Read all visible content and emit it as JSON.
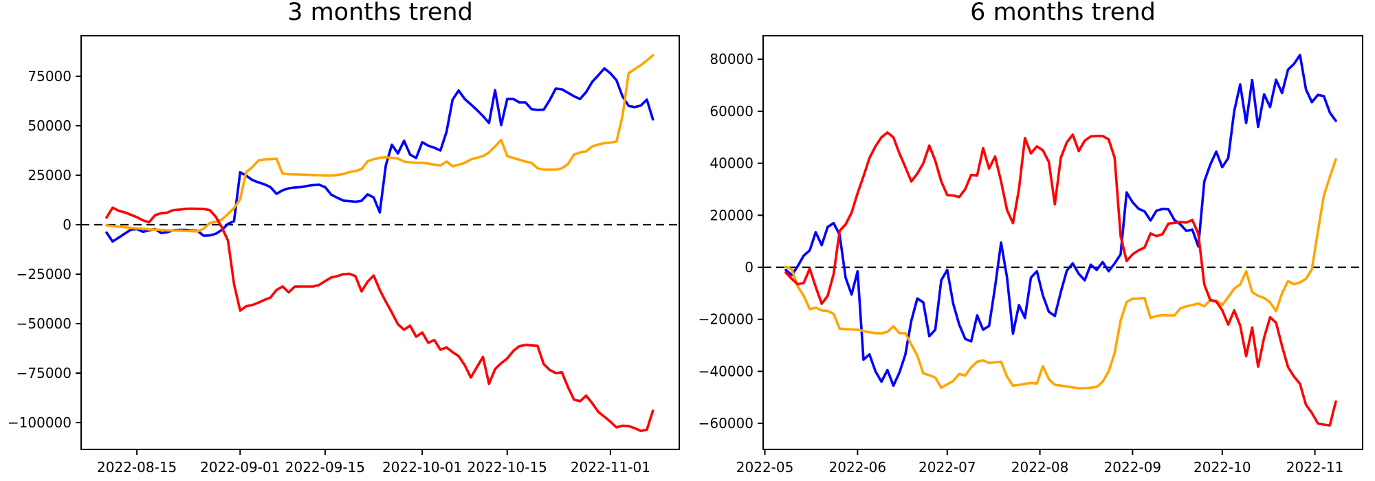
{
  "figure": {
    "background": "#ffffff",
    "text_color": "#000000"
  },
  "chart_data": [
    {
      "type": "line",
      "title": "3 months trend",
      "legend": "none",
      "grid": false,
      "zero_line": {
        "style": "dashed",
        "color": "#000000",
        "value": 0
      },
      "x_start": "2022-08-10",
      "x_step_days": 1,
      "x_tick_labels": [
        "2022-08-15",
        "2022-09-01",
        "2022-09-15",
        "2022-10-01",
        "2022-10-15",
        "2022-11-01"
      ],
      "y_ticks": [
        {
          "label": "75000",
          "value": 75000
        },
        {
          "label": "50000",
          "value": 50000
        },
        {
          "label": "25000",
          "value": 25000
        },
        {
          "label": "0",
          "value": 0
        },
        {
          "label": "−25000",
          "value": -25000
        },
        {
          "label": "−50000",
          "value": -50000
        },
        {
          "label": "−75000",
          "value": -75000
        },
        {
          "label": "−100000",
          "value": -100000
        }
      ],
      "ylim": [
        -113500,
        95500
      ],
      "series": [
        {
          "name": "blue",
          "color": "#0000ff",
          "values": [
            -4000,
            -8500,
            -6500,
            -4500,
            -2500,
            -2200,
            -3600,
            -2800,
            -2200,
            -4200,
            -3800,
            -2800,
            -2600,
            -2600,
            -3000,
            -3200,
            -5600,
            -5400,
            -4600,
            -2600,
            400,
            1800,
            26500,
            24800,
            22600,
            21400,
            20400,
            19000,
            15600,
            17400,
            18400,
            18800,
            19000,
            19600,
            20000,
            20200,
            19000,
            15200,
            13600,
            12200,
            11900,
            11600,
            12100,
            15300,
            13800,
            6200,
            30000,
            40400,
            36000,
            42400,
            35400,
            33700,
            41700,
            39900,
            38900,
            37500,
            46900,
            63200,
            67800,
            63500,
            60800,
            58000,
            54900,
            51400,
            68000,
            50300,
            63500,
            63500,
            61800,
            61800,
            58400,
            58000,
            58100,
            63000,
            68800,
            68400,
            66700,
            64900,
            63500,
            67000,
            72200,
            75500,
            79000,
            76500,
            73000,
            64800,
            60000,
            59400,
            60200,
            63200,
            53200
          ]
        },
        {
          "name": "orange",
          "color": "#ffa500",
          "values": [
            -300,
            -700,
            -1000,
            -1300,
            -1600,
            -1900,
            -2100,
            -2400,
            -2500,
            -2600,
            -2800,
            -3000,
            -3000,
            -3200,
            -3300,
            -3400,
            -2000,
            800,
            1500,
            2600,
            5400,
            8400,
            12800,
            26600,
            29000,
            32400,
            33000,
            33100,
            33300,
            25800,
            25500,
            25400,
            25300,
            25200,
            25100,
            25000,
            24900,
            24900,
            25100,
            25600,
            26600,
            27100,
            28100,
            32100,
            33100,
            33800,
            34100,
            33800,
            33400,
            31900,
            31500,
            31250,
            31250,
            30900,
            30300,
            29900,
            31900,
            29500,
            30300,
            31250,
            33000,
            33800,
            34700,
            36500,
            39500,
            42800,
            34700,
            33700,
            32800,
            31900,
            31250,
            28500,
            27800,
            27800,
            27800,
            28500,
            30600,
            35400,
            36500,
            37100,
            39500,
            40500,
            41200,
            41500,
            42000,
            55000,
            76600,
            78600,
            80600,
            83000,
            85600
          ]
        },
        {
          "name": "red",
          "color": "#ff0000",
          "values": [
            3600,
            8600,
            7000,
            6200,
            5000,
            3800,
            2200,
            1200,
            4800,
            5800,
            6100,
            7400,
            7600,
            8000,
            8100,
            8000,
            7900,
            7400,
            4000,
            -1500,
            -8000,
            -30000,
            -43400,
            -41200,
            -40600,
            -39400,
            -38000,
            -36800,
            -33000,
            -31200,
            -34200,
            -31300,
            -31250,
            -31250,
            -31250,
            -30500,
            -28500,
            -26700,
            -26000,
            -25000,
            -24800,
            -26000,
            -33700,
            -28800,
            -25700,
            -33000,
            -38900,
            -44400,
            -50300,
            -53100,
            -51000,
            -56600,
            -54500,
            -59700,
            -58300,
            -63200,
            -62000,
            -64400,
            -66400,
            -71000,
            -77200,
            -72000,
            -66800,
            -80400,
            -73000,
            -70000,
            -67600,
            -63800,
            -61400,
            -60800,
            -61000,
            -61200,
            -70400,
            -73400,
            -75000,
            -74600,
            -82000,
            -88400,
            -89200,
            -86400,
            -90200,
            -94600,
            -97000,
            -99600,
            -102400,
            -101600,
            -101800,
            -102800,
            -104200,
            -103600,
            -94000
          ]
        }
      ]
    },
    {
      "type": "line",
      "title": "6 months trend",
      "legend": "none",
      "grid": false,
      "zero_line": {
        "style": "dashed",
        "color": "#000000",
        "value": 0
      },
      "x_start": "2022-05-08",
      "x_step_days": 2,
      "x_tick_labels": [
        "2022-05",
        "2022-06",
        "2022-07",
        "2022-08",
        "2022-09",
        "2022-10",
        "2022-11"
      ],
      "y_ticks": [
        {
          "label": "80000",
          "value": 80000
        },
        {
          "label": "60000",
          "value": 60000
        },
        {
          "label": "40000",
          "value": 40000
        },
        {
          "label": "20000",
          "value": 20000
        },
        {
          "label": "0",
          "value": 0
        },
        {
          "label": "−20000",
          "value": -20000
        },
        {
          "label": "−40000",
          "value": -40000
        },
        {
          "label": "−60000",
          "value": -60000
        }
      ],
      "ylim": [
        -70000,
        89000
      ],
      "series": [
        {
          "name": "blue",
          "color": "#0000ff",
          "values": [
            -1000,
            -3000,
            500,
            4500,
            6500,
            13500,
            8500,
            15500,
            17000,
            12500,
            -4000,
            -10500,
            -1500,
            -35500,
            -33500,
            -40000,
            -44000,
            -39500,
            -45500,
            -40500,
            -33500,
            -20500,
            -12000,
            -13500,
            -26500,
            -24000,
            -5000,
            -1000,
            -14000,
            -22000,
            -27500,
            -28500,
            -18500,
            -24000,
            -22500,
            -7500,
            9500,
            -4000,
            -25500,
            -14500,
            -19500,
            -4000,
            -1500,
            -10800,
            -17100,
            -18700,
            -9500,
            -1300,
            1500,
            -2500,
            -5000,
            1000,
            -1000,
            2000,
            -1500,
            1500,
            5000,
            28800,
            25000,
            22500,
            21500,
            18000,
            21800,
            22400,
            22300,
            18200,
            16500,
            14000,
            14500,
            8000,
            33000,
            39500,
            44500,
            38500,
            42000,
            60000,
            70300,
            55500,
            72000,
            54000,
            66500,
            61600,
            72100,
            67000,
            76000,
            78200,
            81600,
            68400,
            63500,
            66300,
            65800,
            59500,
            56300
          ]
        },
        {
          "name": "orange",
          "color": "#ffa500",
          "values": [
            200,
            -800,
            -7400,
            -11000,
            -16100,
            -15500,
            -16600,
            -16800,
            -17900,
            -23600,
            -23800,
            -23900,
            -24000,
            -24500,
            -25000,
            -25300,
            -25400,
            -24800,
            -22700,
            -25300,
            -25300,
            -29700,
            -34000,
            -40800,
            -41500,
            -42400,
            -46300,
            -45000,
            -43700,
            -41000,
            -41600,
            -38500,
            -36300,
            -35800,
            -36800,
            -36500,
            -36300,
            -42100,
            -45500,
            -45200,
            -44800,
            -44500,
            -44700,
            -38000,
            -43000,
            -45200,
            -45500,
            -45800,
            -46200,
            -46500,
            -46500,
            -46300,
            -46000,
            -44000,
            -40000,
            -33000,
            -20500,
            -13400,
            -12100,
            -12000,
            -11800,
            -19500,
            -18700,
            -18400,
            -18500,
            -18500,
            -15800,
            -15000,
            -14500,
            -13900,
            -15000,
            -12600,
            -12800,
            -14500,
            -11500,
            -8200,
            -6600,
            -1500,
            -9500,
            -11000,
            -11800,
            -13500,
            -16800,
            -10000,
            -5300,
            -6500,
            -5800,
            -4400,
            -800,
            13700,
            27600,
            34700,
            41500
          ]
        },
        {
          "name": "red",
          "color": "#ff0000",
          "values": [
            -2000,
            -4500,
            -6500,
            -6000,
            -500,
            -7500,
            -14000,
            -11000,
            -2500,
            14000,
            16500,
            21000,
            28500,
            35000,
            42000,
            46500,
            50000,
            51800,
            50000,
            43800,
            38500,
            33000,
            36000,
            40000,
            46800,
            41000,
            33000,
            27800,
            27600,
            27000,
            30000,
            35500,
            35300,
            45800,
            38000,
            42600,
            33000,
            22000,
            17000,
            30000,
            49700,
            43800,
            46500,
            45000,
            40500,
            24200,
            42100,
            48000,
            51000,
            44700,
            48700,
            50300,
            50500,
            50500,
            49200,
            42100,
            12000,
            2400,
            5000,
            6500,
            7600,
            13000,
            12000,
            12700,
            16800,
            17100,
            17400,
            17200,
            18200,
            12900,
            -6600,
            -12600,
            -13200,
            -16500,
            -22000,
            -16600,
            -22400,
            -34200,
            -23200,
            -38200,
            -27000,
            -19200,
            -21300,
            -30300,
            -38400,
            -42000,
            -44800,
            -52900,
            -56000,
            -60000,
            -60500,
            -60800,
            -51600
          ]
        }
      ]
    }
  ]
}
